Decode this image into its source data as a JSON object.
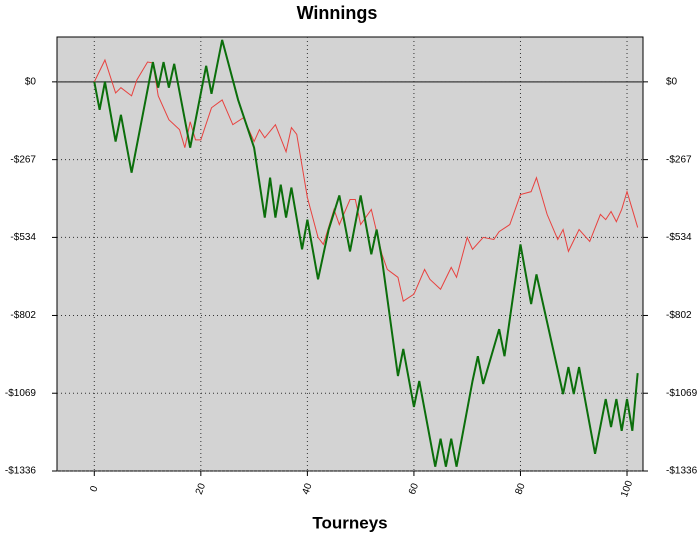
{
  "chart_data": {
    "type": "line",
    "title": "Winnings",
    "x_label": "Tourneys",
    "xlim": [
      -7,
      103
    ],
    "ylim": [
      -1336,
      154
    ],
    "xticks": [
      0,
      20,
      40,
      60,
      80,
      100
    ],
    "yticks": [
      {
        "value": -1336,
        "label": "-$1336"
      },
      {
        "value": -1069,
        "label": "-$1069"
      },
      {
        "value": -802,
        "label": "-$802"
      },
      {
        "value": -534,
        "label": "-$534"
      },
      {
        "value": -267,
        "label": "-$267"
      },
      {
        "value": 0,
        "label": "$0"
      }
    ],
    "grid": true,
    "background": "#d3d3d3",
    "series": [
      {
        "color": "#e8423f",
        "width": 1,
        "x": [
          0,
          2,
          4,
          5,
          7,
          8,
          10,
          11,
          12,
          14,
          16,
          17,
          18,
          19,
          20,
          22,
          24,
          26,
          28,
          30,
          31,
          32,
          34,
          36,
          37,
          38,
          40,
          42,
          43,
          45,
          46,
          48,
          49,
          50,
          52,
          54,
          55,
          57,
          58,
          60,
          62,
          63,
          65,
          67,
          68,
          70,
          71,
          73,
          75,
          76,
          78,
          80,
          82,
          83,
          85,
          87,
          88,
          89,
          91,
          93,
          95,
          96,
          97,
          98,
          99,
          100,
          101,
          102
        ],
        "values": [
          0,
          75,
          -38,
          -20,
          -48,
          7,
          68,
          65,
          -48,
          -130,
          -164,
          -226,
          -137,
          -199,
          -199,
          -89,
          -62,
          -147,
          -123,
          -205,
          -164,
          -192,
          -147,
          -240,
          -157,
          -180,
          -397,
          -534,
          -558,
          -438,
          -490,
          -404,
          -404,
          -490,
          -438,
          -592,
          -644,
          -671,
          -753,
          -729,
          -644,
          -678,
          -712,
          -637,
          -671,
          -534,
          -575,
          -534,
          -541,
          -514,
          -490,
          -387,
          -377,
          -329,
          -455,
          -541,
          -507,
          -582,
          -507,
          -548,
          -455,
          -473,
          -445,
          -480,
          -438,
          -377,
          -438,
          -500
        ]
      },
      {
        "color": "#0b6e0b",
        "width": 2,
        "x": [
          0,
          1,
          2,
          4,
          5,
          7,
          11,
          12,
          13,
          14,
          15,
          18,
          21,
          22,
          24,
          27,
          30,
          32,
          33,
          34,
          35,
          36,
          37,
          39,
          40,
          42,
          44,
          46,
          48,
          50,
          52,
          53,
          54,
          57,
          58,
          60,
          61,
          64,
          65,
          66,
          67,
          68,
          71,
          72,
          73,
          76,
          77,
          80,
          82,
          83,
          85,
          88,
          89,
          90,
          91,
          94,
          96,
          97,
          98,
          99,
          100,
          101,
          102
        ],
        "values": [
          0,
          -96,
          0,
          -205,
          -113,
          -312,
          68,
          -20,
          68,
          -20,
          62,
          -226,
          55,
          -41,
          144,
          -62,
          -226,
          -466,
          -329,
          -466,
          -353,
          -466,
          -363,
          -575,
          -473,
          -678,
          -507,
          -390,
          -582,
          -390,
          -592,
          -507,
          -609,
          -1010,
          -917,
          -1116,
          -1027,
          -1321,
          -1225,
          -1321,
          -1225,
          -1321,
          -1027,
          -942,
          -1037,
          -849,
          -942,
          -558,
          -763,
          -661,
          -825,
          -1072,
          -979,
          -1072,
          -979,
          -1277,
          -1089,
          -1185,
          -1089,
          -1198,
          -1089,
          -1198,
          -1000
        ]
      }
    ]
  }
}
